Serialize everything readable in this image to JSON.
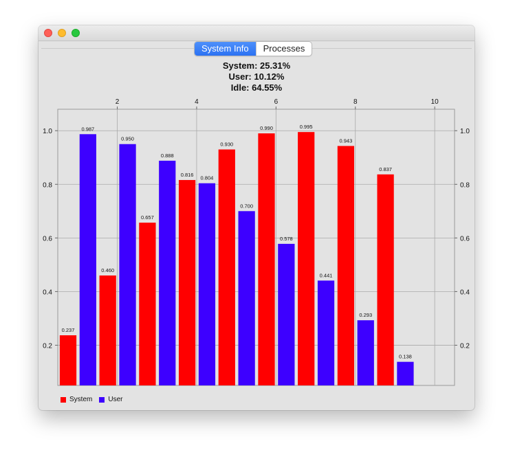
{
  "window": {
    "tabs": [
      {
        "label": "System Info",
        "active": true
      },
      {
        "label": "Processes",
        "active": false
      }
    ]
  },
  "stats": {
    "system": "System: 25.31%",
    "user": "User: 10.12%",
    "idle": "Idle: 64.55%"
  },
  "colors": {
    "system": "#ff0000",
    "user": "#3d00ff"
  },
  "chart_data": {
    "type": "bar",
    "categories": [
      "1",
      "2",
      "3",
      "4",
      "5",
      "6",
      "7",
      "8",
      "9"
    ],
    "series": [
      {
        "name": "System",
        "values": [
          0.237,
          0.46,
          0.657,
          0.816,
          0.93,
          0.99,
          0.995,
          0.943,
          0.837
        ]
      },
      {
        "name": "User",
        "values": [
          0.987,
          0.95,
          0.888,
          0.804,
          0.7,
          0.578,
          0.441,
          0.293,
          0.138
        ]
      }
    ],
    "value_labels": {
      "System": [
        "0.237",
        "0.460",
        "0.657",
        "0.816",
        "0.930",
        "0.990",
        "0.995",
        "0.943",
        "0.837"
      ],
      "User": [
        "0.987",
        "0.950",
        "0.888",
        "0.804",
        "0.700",
        "0.578",
        "0.441",
        "0.293",
        "0.138"
      ]
    },
    "x_ticks": [
      "2",
      "4",
      "6",
      "8",
      "10"
    ],
    "x_tick_values": [
      2,
      4,
      6,
      8,
      10
    ],
    "xlim": [
      0.5,
      10.5
    ],
    "y_ticks": [
      "0.2",
      "0.4",
      "0.6",
      "0.8",
      "1.0"
    ],
    "y_tick_values": [
      0.2,
      0.4,
      0.6,
      0.8,
      1.0
    ],
    "ylim": [
      0.05,
      1.08
    ],
    "grid": true,
    "legend": "bottom-left",
    "x_axis_position": "top",
    "y_axis_position": "both"
  }
}
